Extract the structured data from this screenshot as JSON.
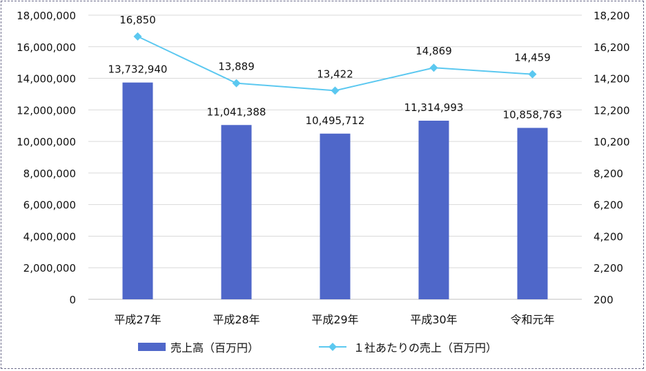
{
  "chart_data": {
    "type": "bar",
    "categories": [
      "平成27年",
      "平成28年",
      "平成29年",
      "平成30年",
      "令和元年"
    ],
    "series": [
      {
        "name": "売上高（百万円）",
        "type": "bar",
        "axis": "left",
        "color": "#4f67c9",
        "values": [
          13732940,
          11041388,
          10495712,
          11314993,
          10858763
        ],
        "labels": [
          "13,732,940",
          "11,041,388",
          "10,495,712",
          "11,314,993",
          "10,858,763"
        ]
      },
      {
        "name": "１社あたりの売上（百万円）",
        "type": "line",
        "axis": "right",
        "color": "#5bc8f0",
        "marker": "diamond",
        "values": [
          16850,
          13889,
          13422,
          14869,
          14459
        ],
        "labels": [
          "16,850",
          "13,889",
          "13,422",
          "14,869",
          "14,459"
        ]
      }
    ],
    "left_axis": {
      "min": 0,
      "max": 18000000,
      "step": 2000000,
      "ticks": [
        "0",
        "2,000,000",
        "4,000,000",
        "6,000,000",
        "8,000,000",
        "10,000,000",
        "12,000,000",
        "14,000,000",
        "16,000,000",
        "18,000,000"
      ]
    },
    "right_axis": {
      "min": 200,
      "max": 18200,
      "step": 2000,
      "ticks": [
        "200",
        "2,200",
        "4,200",
        "6,200",
        "8,200",
        "10,200",
        "12,200",
        "14,200",
        "16,200",
        "18,200"
      ]
    },
    "grid": true,
    "legend_position": "bottom"
  }
}
